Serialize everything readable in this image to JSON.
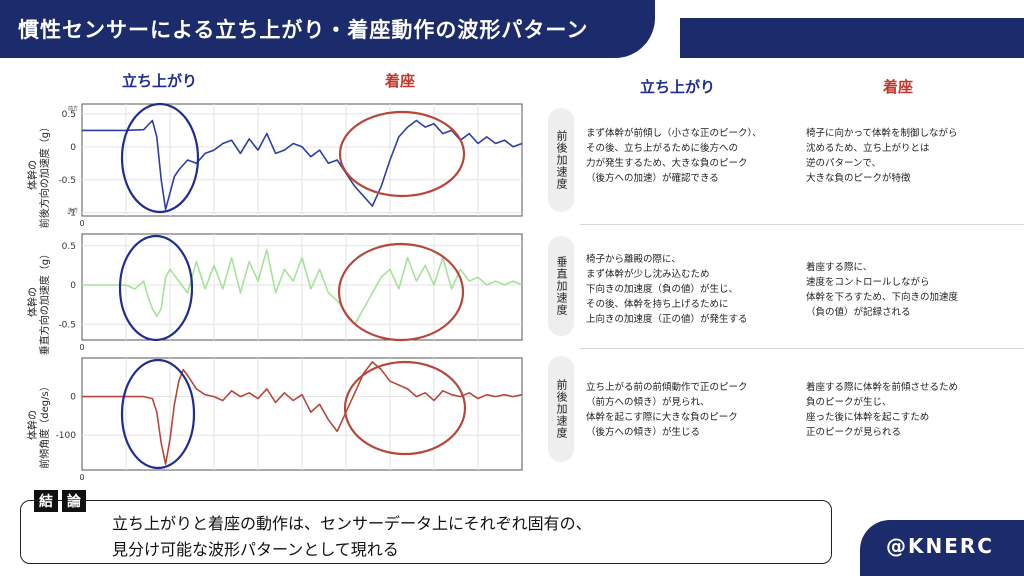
{
  "header": {
    "title": "慣性センサーによる立ち上がり・着座動作の波形パターン"
  },
  "chart_headings": {
    "standup": "立ち上がり",
    "sitdown": "着座"
  },
  "desc_headings": {
    "standup": "立ち上がり",
    "sitdown": "着座"
  },
  "rows": [
    {
      "tag": "前後加速度",
      "standup_text": "まず体幹が前傾し（小さな正のピーク）、\nその後、立ち上がるために後方への\n力が発生するため、大きな負のピーク\n（後方への加速）が確認できる",
      "sitdown_text": "椅子に向かって体幹を制御しながら\n沈めるため、立ち上がりとは\n逆のパターンで、\n大きな負のピークが特徴"
    },
    {
      "tag": "垂直加速度",
      "standup_text": "椅子から離殿の際に、\nまず体幹が少し沈み込むため\n下向きの加速度（負の値）が生じ、\nその後、体幹を持ち上げるために\n上向きの加速度（正の値）が発生する",
      "sitdown_text": "着座する際に、\n速度をコントロールしながら\n体幹を下ろすため、下向きの加速度\n（負の値）が記録される"
    },
    {
      "tag": "前後加速度",
      "standup_text": "立ち上がる前の前傾動作で正のピーク\n（前方への傾き）が見られ、\n体幹を起こす際に大きな負のピーク\n（後方への傾き）が生じる",
      "sitdown_text": "着座する際に体幹を前傾させるため\n負のピークが生じ、\n座った後に体幹を起こすため\n正のピークが見られる"
    }
  ],
  "conclusion": {
    "tag1": "結",
    "tag2": "論",
    "line1": "立ち上がりと着座の動作は、センサーデータ上にそれぞれ固有の、",
    "line2": "見分け可能な波形パターンとして現れる"
  },
  "footer": {
    "handle": "@KNERC"
  },
  "colors": {
    "navy": "#1c2b6b",
    "ap_series": "#2c3fa3",
    "vertical_series": "#a6e39a",
    "angle_series": "#b5483a",
    "circle_standup": "#1f2d8f",
    "circle_sitdown": "#b5483a"
  },
  "chart_data": [
    {
      "type": "line",
      "ylabel": "体幹の\n前後方向の加速度（g）",
      "ylim": [
        -1.05,
        0.65
      ],
      "yticks": [
        "0.5",
        "0",
        "-0.5",
        "-1"
      ],
      "ytick_values": [
        0.5,
        0,
        -0.5,
        -1
      ],
      "top_marker": "前方",
      "bottom_marker": "後方",
      "xtick": "0",
      "xlim": [
        0,
        100
      ],
      "series": [
        {
          "x": [
            0,
            5,
            10,
            14,
            16,
            17,
            18,
            19,
            20,
            21,
            22,
            24,
            26,
            28,
            30,
            32,
            34,
            36,
            38,
            40,
            42,
            44,
            46,
            48,
            50,
            52,
            54,
            56,
            58,
            60,
            62,
            64,
            66,
            68,
            70,
            72,
            74,
            76,
            78,
            80,
            82,
            84,
            86,
            88,
            90,
            92,
            94,
            96,
            98,
            100
          ],
          "values": [
            0.25,
            0.25,
            0.25,
            0.26,
            0.4,
            0.15,
            -0.5,
            -0.95,
            -0.7,
            -0.45,
            -0.35,
            -0.2,
            -0.25,
            -0.1,
            -0.05,
            0.05,
            0.1,
            -0.1,
            0.12,
            -0.05,
            0.2,
            -0.1,
            -0.05,
            0.05,
            0.0,
            -0.15,
            -0.05,
            -0.25,
            -0.2,
            -0.4,
            -0.6,
            -0.75,
            -0.9,
            -0.6,
            -0.2,
            0.15,
            0.3,
            0.4,
            0.3,
            0.35,
            0.2,
            0.25,
            0.1,
            0.2,
            0.05,
            0.15,
            0.05,
            0.1,
            0.0,
            0.05
          ]
        }
      ]
    },
    {
      "type": "line",
      "ylabel": "体幹の\n垂直方向の加速度（g）",
      "ylim": [
        -0.7,
        0.65
      ],
      "yticks": [
        "0.5",
        "0",
        "-0.5"
      ],
      "ytick_values": [
        0.5,
        0,
        -0.5
      ],
      "xtick": "0",
      "xlim": [
        0,
        100
      ],
      "series": [
        {
          "x": [
            0,
            5,
            10,
            12,
            14,
            15,
            16,
            17,
            18,
            19,
            20,
            22,
            24,
            26,
            28,
            30,
            32,
            34,
            36,
            38,
            40,
            42,
            44,
            46,
            48,
            50,
            52,
            54,
            56,
            58,
            60,
            62,
            64,
            66,
            68,
            70,
            72,
            74,
            76,
            78,
            80,
            82,
            84,
            86,
            88,
            90,
            92,
            94,
            96,
            98,
            100
          ],
          "values": [
            0.0,
            0.0,
            0.0,
            -0.05,
            0.05,
            -0.15,
            -0.3,
            -0.4,
            -0.3,
            0.1,
            0.2,
            0.05,
            -0.1,
            0.3,
            -0.05,
            0.25,
            -0.05,
            0.35,
            -0.1,
            0.3,
            0.05,
            0.45,
            -0.1,
            0.2,
            0.05,
            0.35,
            -0.05,
            0.2,
            -0.1,
            -0.2,
            -0.35,
            -0.5,
            -0.3,
            -0.1,
            0.1,
            0.2,
            -0.05,
            0.35,
            0.05,
            0.25,
            0.0,
            0.35,
            -0.05,
            0.2,
            0.05,
            0.1,
            0.0,
            0.05,
            0.0,
            0.05,
            0.0
          ]
        }
      ]
    },
    {
      "type": "line",
      "ylabel": "体幹の\n前傾角度（deg/s）",
      "ylim": [
        -190,
        100
      ],
      "yticks": [
        "0",
        "-100"
      ],
      "ytick_values": [
        0,
        -100
      ],
      "xtick": "0",
      "xlim": [
        0,
        100
      ],
      "series": [
        {
          "x": [
            0,
            5,
            10,
            14,
            16,
            17,
            18,
            19,
            20,
            21,
            22,
            23,
            24,
            26,
            28,
            30,
            32,
            34,
            36,
            38,
            40,
            42,
            44,
            46,
            48,
            50,
            52,
            54,
            56,
            58,
            60,
            62,
            64,
            66,
            68,
            70,
            72,
            74,
            76,
            78,
            80,
            82,
            84,
            86,
            88,
            90,
            92,
            94,
            96,
            98,
            100
          ],
          "values": [
            0,
            0,
            0,
            0,
            -5,
            -40,
            -120,
            -175,
            -110,
            -20,
            40,
            70,
            55,
            20,
            5,
            0,
            -10,
            15,
            0,
            10,
            -5,
            20,
            -15,
            10,
            -10,
            5,
            -40,
            -20,
            -60,
            -90,
            -40,
            10,
            60,
            90,
            70,
            40,
            30,
            20,
            0,
            10,
            -10,
            15,
            5,
            0,
            10,
            -5,
            5,
            0,
            5,
            0,
            5
          ]
        }
      ]
    }
  ]
}
